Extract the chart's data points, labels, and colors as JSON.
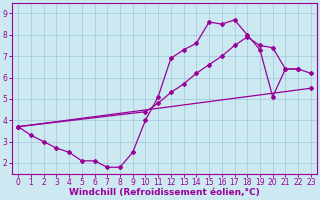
{
  "line1_x": [
    0,
    1,
    2,
    3,
    4,
    5,
    6,
    7,
    8,
    9,
    10,
    11,
    12,
    13,
    14,
    15,
    16,
    17,
    18,
    19,
    20,
    21,
    22
  ],
  "line1_y": [
    3.7,
    3.3,
    3.0,
    2.7,
    2.5,
    2.1,
    2.1,
    1.8,
    1.8,
    2.5,
    4.0,
    5.1,
    6.9,
    7.3,
    7.6,
    8.6,
    8.5,
    8.7,
    8.0,
    7.3,
    5.1,
    6.4,
    6.4
  ],
  "line2_x": [
    0,
    23
  ],
  "line2_y": [
    3.7,
    5.5
  ],
  "line3_x": [
    0,
    10,
    11,
    12,
    13,
    14,
    15,
    16,
    17,
    18,
    19,
    20,
    21,
    22,
    23
  ],
  "line3_y": [
    3.7,
    4.4,
    4.8,
    5.3,
    5.7,
    6.2,
    6.6,
    7.0,
    7.5,
    7.9,
    7.5,
    7.4,
    6.4,
    6.4,
    6.2
  ],
  "color": "#990099",
  "bg_color": "#cce8f0",
  "grid_color": "#aaccdd",
  "xlabel": "Windchill (Refroidissement éolien,°C)",
  "xlim": [
    -0.5,
    23.5
  ],
  "ylim": [
    1.5,
    9.5
  ],
  "yticks": [
    2,
    3,
    4,
    5,
    6,
    7,
    8,
    9
  ],
  "xticks": [
    0,
    1,
    2,
    3,
    4,
    5,
    6,
    7,
    8,
    9,
    10,
    11,
    12,
    13,
    14,
    15,
    16,
    17,
    18,
    19,
    20,
    21,
    22,
    23
  ],
  "marker": "D",
  "markersize": 2,
  "linewidth": 0.9,
  "xlabel_fontsize": 6.5,
  "tick_fontsize": 5.5
}
